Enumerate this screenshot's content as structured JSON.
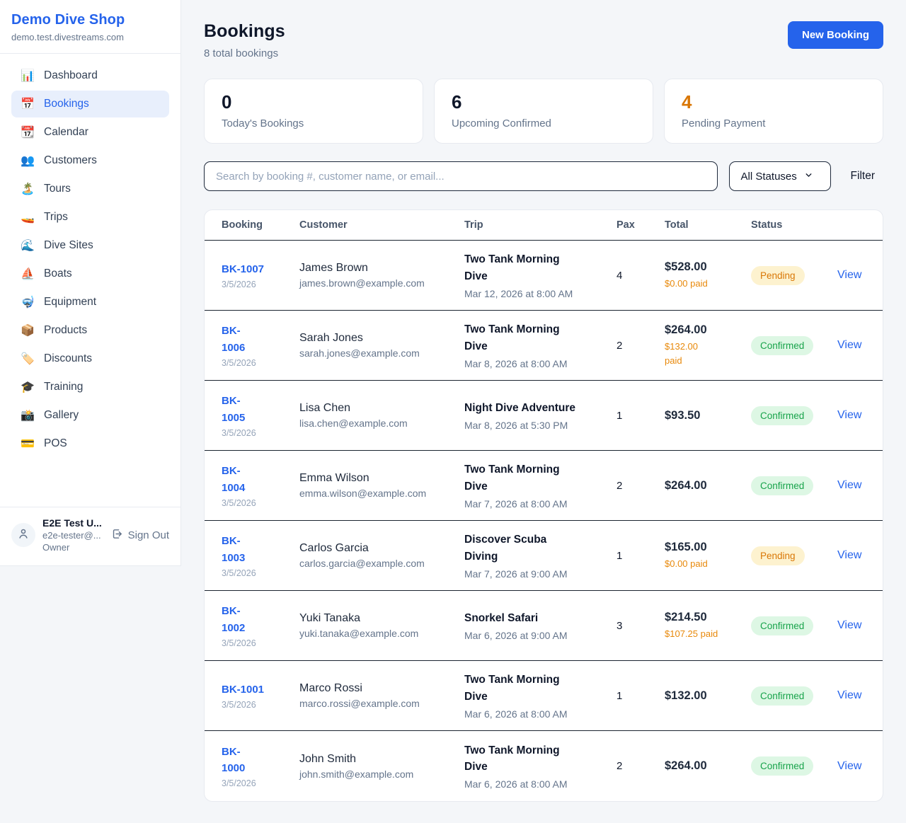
{
  "sidebar": {
    "shop_name": "Demo Dive Shop",
    "shop_domain": "demo.test.divestreams.com",
    "items": [
      {
        "label": "Dashboard",
        "icon": "📊",
        "icon_name": "bar-chart-icon",
        "active": false
      },
      {
        "label": "Bookings",
        "icon": "📅",
        "icon_name": "calendar-icon",
        "active": true
      },
      {
        "label": "Calendar",
        "icon": "📆",
        "icon_name": "tear-off-calendar-icon",
        "active": false
      },
      {
        "label": "Customers",
        "icon": "👥",
        "icon_name": "people-icon",
        "active": false
      },
      {
        "label": "Tours",
        "icon": "🏝️",
        "icon_name": "island-icon",
        "active": false
      },
      {
        "label": "Trips",
        "icon": "🚤",
        "icon_name": "speedboat-icon",
        "active": false
      },
      {
        "label": "Dive Sites",
        "icon": "🌊",
        "icon_name": "wave-icon",
        "active": false
      },
      {
        "label": "Boats",
        "icon": "⛵",
        "icon_name": "sailboat-icon",
        "active": false
      },
      {
        "label": "Equipment",
        "icon": "🤿",
        "icon_name": "diving-mask-icon",
        "active": false
      },
      {
        "label": "Products",
        "icon": "📦",
        "icon_name": "package-icon",
        "active": false
      },
      {
        "label": "Discounts",
        "icon": "🏷️",
        "icon_name": "tag-icon",
        "active": false
      },
      {
        "label": "Training",
        "icon": "🎓",
        "icon_name": "graduation-cap-icon",
        "active": false
      },
      {
        "label": "Gallery",
        "icon": "📸",
        "icon_name": "camera-icon",
        "active": false
      },
      {
        "label": "POS",
        "icon": "💳",
        "icon_name": "credit-card-icon",
        "active": false
      }
    ],
    "user": {
      "name": "E2E Test U...",
      "email": "e2e-tester@...",
      "role": "Owner",
      "sign_out_label": "Sign Out"
    }
  },
  "header": {
    "title": "Bookings",
    "subtitle": "8 total bookings",
    "new_booking_label": "New Booking"
  },
  "stats": [
    {
      "value": "0",
      "label": "Today's Bookings",
      "accent": false
    },
    {
      "value": "6",
      "label": "Upcoming Confirmed",
      "accent": false
    },
    {
      "value": "4",
      "label": "Pending Payment",
      "accent": true
    }
  ],
  "filters": {
    "search_placeholder": "Search by booking #, customer name, or email...",
    "status_select_value": "All Statuses",
    "filter_button_label": "Filter"
  },
  "table": {
    "columns": [
      "Booking",
      "Customer",
      "Trip",
      "Pax",
      "Total",
      "Status"
    ],
    "rows": [
      {
        "id": "BK-1007",
        "date": "3/5/2026",
        "customer": "James Brown",
        "email": "james.brown@example.com",
        "trip": "Two Tank Morning\nDive",
        "trip_date": "Mar 12, 2026 at 8:00 AM",
        "pax": "4",
        "total": "$528.00",
        "paid": "$0.00 paid",
        "status": "Pending",
        "status_type": "pending",
        "action": "View"
      },
      {
        "id": "BK-\n1006",
        "date": "3/5/2026",
        "customer": "Sarah Jones",
        "email": "sarah.jones@example.com",
        "trip": "Two Tank Morning\nDive",
        "trip_date": "Mar 8, 2026 at 8:00 AM",
        "pax": "2",
        "total": "$264.00",
        "paid": "$132.00\npaid",
        "status": "Confirmed",
        "status_type": "confirmed",
        "action": "View"
      },
      {
        "id": "BK-\n1005",
        "date": "3/5/2026",
        "customer": "Lisa Chen",
        "email": "lisa.chen@example.com",
        "trip": "Night Dive Adventure",
        "trip_date": "Mar 8, 2026 at 5:30 PM",
        "pax": "1",
        "total": "$93.50",
        "paid": null,
        "status": "Confirmed",
        "status_type": "confirmed",
        "action": "View"
      },
      {
        "id": "BK-\n1004",
        "date": "3/5/2026",
        "customer": "Emma Wilson",
        "email": "emma.wilson@example.com",
        "trip": "Two Tank Morning\nDive",
        "trip_date": "Mar 7, 2026 at 8:00 AM",
        "pax": "2",
        "total": "$264.00",
        "paid": null,
        "status": "Confirmed",
        "status_type": "confirmed",
        "action": "View"
      },
      {
        "id": "BK-\n1003",
        "date": "3/5/2026",
        "customer": "Carlos Garcia",
        "email": "carlos.garcia@example.com",
        "trip": "Discover Scuba\nDiving",
        "trip_date": "Mar 7, 2026 at 9:00 AM",
        "pax": "1",
        "total": "$165.00",
        "paid": "$0.00 paid",
        "status": "Pending",
        "status_type": "pending",
        "action": "View"
      },
      {
        "id": "BK-\n1002",
        "date": "3/5/2026",
        "customer": "Yuki Tanaka",
        "email": "yuki.tanaka@example.com",
        "trip": "Snorkel Safari",
        "trip_date": "Mar 6, 2026 at 9:00 AM",
        "pax": "3",
        "total": "$214.50",
        "paid": "$107.25 paid",
        "status": "Confirmed",
        "status_type": "confirmed",
        "action": "View"
      },
      {
        "id": "BK-1001",
        "date": "3/5/2026",
        "customer": "Marco Rossi",
        "email": "marco.rossi@example.com",
        "trip": "Two Tank Morning\nDive",
        "trip_date": "Mar 6, 2026 at 8:00 AM",
        "pax": "1",
        "total": "$132.00",
        "paid": null,
        "status": "Confirmed",
        "status_type": "confirmed",
        "action": "View"
      },
      {
        "id": "BK-\n1000",
        "date": "3/5/2026",
        "customer": "John Smith",
        "email": "john.smith@example.com",
        "trip": "Two Tank Morning\nDive",
        "trip_date": "Mar 6, 2026 at 8:00 AM",
        "pax": "2",
        "total": "$264.00",
        "paid": null,
        "status": "Confirmed",
        "status_type": "confirmed",
        "action": "View"
      }
    ]
  }
}
